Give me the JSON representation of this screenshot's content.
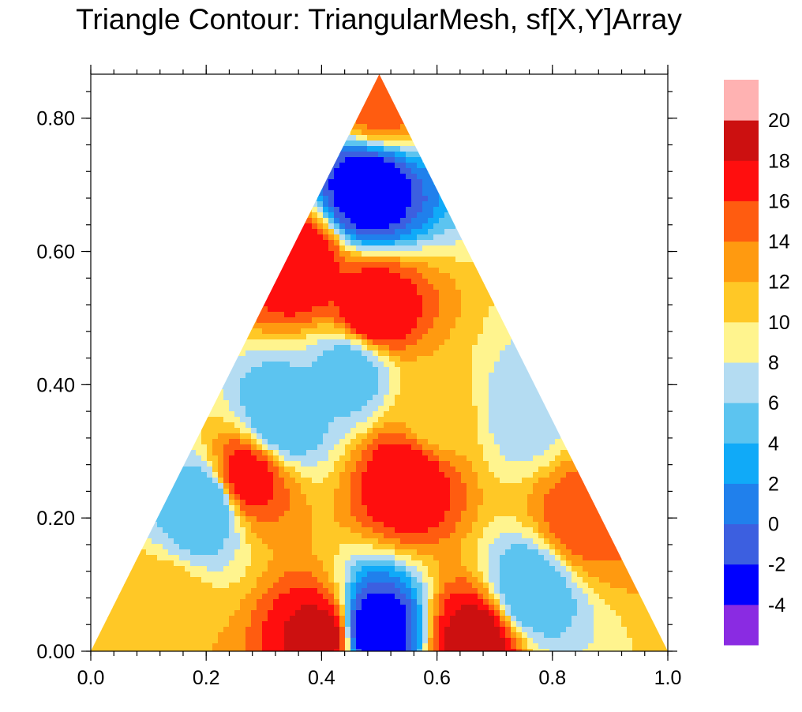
{
  "chart_data": {
    "type": "heatmap",
    "title": "Triangle Contour: TriangularMesh, sf[X,Y]Array",
    "subtitle": "",
    "xlabel": "",
    "ylabel": "",
    "xlim": [
      0.0,
      1.0
    ],
    "ylim": [
      0.0,
      0.866
    ],
    "x_ticks": [
      "0.0",
      "0.2",
      "0.4",
      "0.6",
      "0.8",
      "1.0"
    ],
    "x_tick_values": [
      0.0,
      0.2,
      0.4,
      0.6,
      0.8,
      1.0
    ],
    "y_ticks": [
      "0.00",
      "0.20",
      "0.40",
      "0.60",
      "0.80"
    ],
    "y_tick_values": [
      0.0,
      0.2,
      0.4,
      0.6,
      0.8
    ],
    "domain": "equilateral triangle with vertices (0,0), (1,0), (0.5,0.866)",
    "colorbar": {
      "labels": [
        "20",
        "18",
        "16",
        "14",
        "12",
        "10",
        "8",
        "6",
        "4",
        "2",
        "0",
        "-2",
        "-4"
      ],
      "levels": [
        -4,
        -2,
        0,
        2,
        4,
        6,
        8,
        10,
        12,
        14,
        16,
        18,
        20
      ],
      "colors": [
        "#8a2be2",
        "#0000ff",
        "#3c5fe0",
        "#2080ec",
        "#10aaf8",
        "#5cc4f0",
        "#b4dcf2",
        "#fff48e",
        "#ffc826",
        "#ff9a10",
        "#ff5c10",
        "#ff0e0e",
        "#cc1010",
        "#ffb2b2"
      ]
    },
    "field": {
      "description_points": [
        {
          "x": 0.48,
          "y": 0.69,
          "value": -4
        },
        {
          "x": 0.5,
          "y": 0.83,
          "value": 15
        },
        {
          "x": 0.36,
          "y": 0.58,
          "value": 18
        },
        {
          "x": 0.49,
          "y": 0.51,
          "value": 18
        },
        {
          "x": 0.45,
          "y": 0.42,
          "value": 5
        },
        {
          "x": 0.27,
          "y": 0.26,
          "value": 17
        },
        {
          "x": 0.55,
          "y": 0.26,
          "value": 18
        },
        {
          "x": 0.85,
          "y": 0.2,
          "value": 15
        },
        {
          "x": 0.75,
          "y": 0.36,
          "value": 7
        },
        {
          "x": 0.2,
          "y": 0.22,
          "value": 4
        },
        {
          "x": 0.33,
          "y": 0.35,
          "value": 4
        },
        {
          "x": 0.49,
          "y": 0.03,
          "value": -4
        },
        {
          "x": 0.4,
          "y": 0.02,
          "value": 19
        },
        {
          "x": 0.67,
          "y": 0.02,
          "value": 19
        },
        {
          "x": 0.76,
          "y": 0.09,
          "value": 4
        },
        {
          "x": 0.6,
          "y": 0.35,
          "value": 11
        },
        {
          "x": 0.12,
          "y": 0.05,
          "value": 12
        }
      ]
    }
  }
}
